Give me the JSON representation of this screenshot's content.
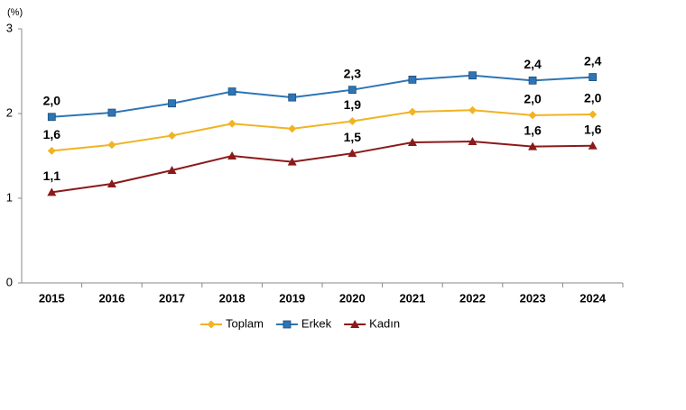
{
  "chart_data": {
    "type": "line",
    "y_label": "(%)",
    "categories": [
      "2015",
      "2016",
      "2017",
      "2018",
      "2019",
      "2020",
      "2021",
      "2022",
      "2023",
      "2024"
    ],
    "series": [
      {
        "name": "Toplam",
        "color": "#f0b323",
        "marker": "diamond",
        "values": [
          1.56,
          1.63,
          1.74,
          1.88,
          1.82,
          1.91,
          2.02,
          2.04,
          1.98,
          1.99
        ],
        "value_labels": [
          "1,6",
          null,
          null,
          null,
          null,
          "1,9",
          null,
          null,
          "2,0",
          "2,0"
        ]
      },
      {
        "name": "Erkek",
        "color": "#2e75b6",
        "marker": "square",
        "values": [
          1.96,
          2.01,
          2.12,
          2.26,
          2.19,
          2.28,
          2.4,
          2.45,
          2.39,
          2.43
        ],
        "value_labels": [
          "2,0",
          null,
          null,
          null,
          null,
          "2,3",
          null,
          null,
          "2,4",
          "2,4"
        ]
      },
      {
        "name": "Kadın",
        "color": "#8b1a1a",
        "marker": "triangle",
        "values": [
          1.07,
          1.17,
          1.33,
          1.5,
          1.43,
          1.53,
          1.66,
          1.67,
          1.61,
          1.62
        ],
        "value_labels": [
          "1,1",
          null,
          null,
          null,
          null,
          "1,5",
          null,
          null,
          "1,6",
          "1,6"
        ]
      }
    ],
    "ylim": [
      0,
      3
    ],
    "yticks": [
      0,
      1,
      2,
      3
    ],
    "grid": false,
    "legend": "bottom"
  }
}
